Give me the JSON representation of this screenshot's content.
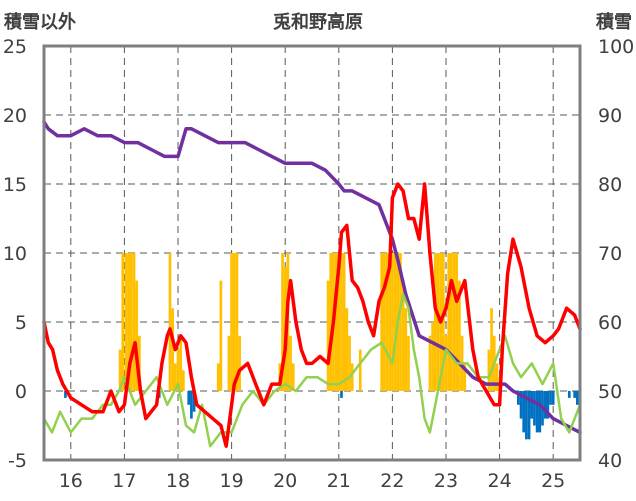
{
  "chart_data": {
    "type": "line",
    "title": "兎和野高原",
    "y_left_label": "積雪以外",
    "y_right_label": "積雪",
    "x_ticks": [
      16,
      17,
      18,
      19,
      20,
      21,
      22,
      23,
      24,
      25
    ],
    "x_range": [
      15.5,
      25.5
    ],
    "y_left_range": [
      -5,
      25
    ],
    "y_left_ticks": [
      -5,
      0,
      5,
      10,
      15,
      20,
      25
    ],
    "y_right_range": [
      40,
      100
    ],
    "y_right_ticks": [
      40,
      50,
      60,
      70,
      80,
      90,
      100
    ],
    "grid": true,
    "colors": {
      "temperature": "#ff0000",
      "humidity_like": "#92d050",
      "snow_depth": "#7030a0",
      "precip_positive": "#ffc000",
      "precip_negative": "#0070c0",
      "axis": "#7f7f7f",
      "grid": "#595959"
    },
    "series": [
      {
        "key": "snow_depth",
        "axis": "right",
        "x": [
          15.5,
          15.58,
          15.75,
          16.0,
          16.25,
          16.5,
          16.75,
          17.0,
          17.25,
          17.5,
          17.75,
          18.0,
          18.15,
          18.25,
          18.5,
          18.75,
          19.0,
          19.25,
          19.5,
          19.75,
          20.0,
          20.25,
          20.5,
          20.75,
          21.0,
          21.1,
          21.25,
          21.5,
          21.75,
          21.9,
          22.0,
          22.1,
          22.25,
          22.5,
          22.75,
          23.0,
          23.25,
          23.5,
          23.75,
          24.0,
          24.1,
          24.25,
          24.5,
          24.75,
          25.0,
          25.25,
          25.5
        ],
        "values": [
          89,
          88,
          87,
          87,
          88,
          87,
          87,
          86,
          86,
          85,
          84,
          84,
          88,
          88,
          87,
          86,
          86,
          86,
          85,
          84,
          83,
          83,
          83,
          82,
          80,
          79,
          79,
          78,
          77,
          74,
          72,
          69,
          64,
          58,
          57,
          56,
          54,
          52,
          51,
          51,
          51,
          50,
          49,
          48,
          46,
          45,
          44
        ]
      },
      {
        "key": "temperature",
        "axis": "left",
        "x": [
          15.5,
          15.58,
          15.66,
          15.75,
          15.85,
          16.0,
          16.2,
          16.4,
          16.6,
          16.75,
          16.9,
          17.0,
          17.1,
          17.2,
          17.3,
          17.4,
          17.5,
          17.6,
          17.7,
          17.8,
          17.85,
          17.95,
          18.05,
          18.15,
          18.25,
          18.35,
          18.5,
          18.65,
          18.8,
          18.9,
          19.0,
          19.05,
          19.15,
          19.3,
          19.45,
          19.6,
          19.75,
          19.9,
          20.0,
          20.05,
          20.1,
          20.2,
          20.3,
          20.4,
          20.5,
          20.65,
          20.8,
          20.9,
          21.0,
          21.05,
          21.15,
          21.25,
          21.35,
          21.45,
          21.55,
          21.65,
          21.75,
          21.85,
          21.95,
          22.0,
          22.1,
          22.2,
          22.3,
          22.4,
          22.5,
          22.6,
          22.7,
          22.8,
          22.9,
          23.0,
          23.1,
          23.2,
          23.35,
          23.5,
          23.6,
          23.75,
          23.9,
          24.0,
          24.05,
          24.15,
          24.25,
          24.4,
          24.55,
          24.7,
          24.85,
          25.0,
          25.1,
          25.25,
          25.4,
          25.5
        ],
        "values": [
          5,
          3.5,
          3,
          1.5,
          0.5,
          -0.5,
          -1,
          -1.5,
          -1.5,
          0,
          -1.5,
          -1,
          2,
          3.5,
          0,
          -2,
          -1.5,
          -1,
          2,
          4,
          4.5,
          3,
          4,
          3.5,
          1,
          -1,
          -1.5,
          -2,
          -2.5,
          -4,
          -1,
          0.5,
          1.5,
          2,
          0.5,
          -1,
          0.5,
          0.5,
          3,
          6.5,
          8,
          5,
          3,
          2,
          2,
          2.5,
          2,
          5,
          9,
          11.5,
          12,
          8,
          7.5,
          6.5,
          5,
          4,
          6.5,
          7.5,
          9,
          14,
          15,
          14.5,
          12.5,
          12.5,
          11,
          15,
          10,
          6,
          5,
          6,
          8,
          6.5,
          8,
          3,
          1,
          0,
          -1,
          -1,
          3,
          8.5,
          11,
          9,
          6,
          4,
          3.5,
          4,
          4.5,
          6,
          5.5,
          4.5
        ]
      },
      {
        "key": "humidity_like",
        "axis": "left",
        "x": [
          15.5,
          15.65,
          15.8,
          16.0,
          16.2,
          16.4,
          16.6,
          16.75,
          16.9,
          17.0,
          17.2,
          17.4,
          17.6,
          17.8,
          18.0,
          18.15,
          18.3,
          18.45,
          18.6,
          18.8,
          19.0,
          19.2,
          19.4,
          19.6,
          19.8,
          20.0,
          20.2,
          20.4,
          20.6,
          20.8,
          21.0,
          21.2,
          21.4,
          21.6,
          21.8,
          22.0,
          22.1,
          22.2,
          22.3,
          22.4,
          22.5,
          22.6,
          22.7,
          22.8,
          22.9,
          23.0,
          23.2,
          23.4,
          23.6,
          23.8,
          24.0,
          24.1,
          24.25,
          24.4,
          24.6,
          24.8,
          25.0,
          25.15,
          25.3,
          25.5
        ],
        "values": [
          -2,
          -3,
          -1.5,
          -3,
          -2,
          -2,
          -1,
          -1,
          0,
          1,
          -1,
          0,
          1,
          -1,
          0.5,
          -2.5,
          -3,
          -1,
          -4,
          -3,
          -3,
          -1,
          0,
          -1,
          0,
          0.5,
          0,
          1,
          1,
          0.5,
          0.5,
          1,
          2,
          3,
          3.5,
          2,
          5,
          7,
          6,
          3,
          1,
          -2,
          -3,
          -1,
          1,
          3,
          2,
          2,
          1,
          1,
          3,
          4,
          2,
          1,
          2,
          0.5,
          2,
          -2,
          -3,
          -1
        ]
      }
    ],
    "bars": [
      {
        "key": "precip_positive",
        "axis": "left",
        "x": [
          16.92,
          16.97,
          17.03,
          17.08,
          17.13,
          17.18,
          17.23,
          17.28,
          17.85,
          17.9,
          17.95,
          18.0,
          18.05,
          18.1,
          18.75,
          18.8,
          18.95,
          19.0,
          19.05,
          19.1,
          19.15,
          19.9,
          19.95,
          20.0,
          20.05,
          20.1,
          20.15,
          20.8,
          20.85,
          20.9,
          20.95,
          21.0,
          21.05,
          21.1,
          21.15,
          21.2,
          21.25,
          21.4,
          21.8,
          21.85,
          21.9,
          21.95,
          22.0,
          22.05,
          22.1,
          22.15,
          22.2,
          22.25,
          22.3,
          22.7,
          22.75,
          22.8,
          22.85,
          22.9,
          22.95,
          23.0,
          23.05,
          23.1,
          23.15,
          23.2,
          23.25,
          23.3,
          23.35,
          23.8,
          23.85,
          23.9,
          23.95,
          24.0
        ],
        "values": [
          3,
          10,
          10,
          10,
          10,
          10,
          8,
          4,
          10,
          6,
          2,
          3,
          4,
          1.5,
          2,
          8,
          4,
          10,
          10,
          10,
          4,
          2,
          10,
          9,
          10,
          4,
          2,
          8,
          10,
          10,
          10,
          10,
          10,
          10,
          6,
          4,
          2,
          3,
          10,
          10,
          10,
          10,
          10,
          10,
          10,
          10,
          8,
          6,
          4,
          4,
          5,
          10,
          10,
          10,
          10,
          4,
          10,
          10,
          10,
          10,
          8,
          4,
          2,
          3,
          6,
          4,
          2,
          1
        ]
      },
      {
        "key": "precip_negative",
        "axis": "left",
        "x": [
          15.9,
          17.65,
          18.2,
          18.25,
          18.3,
          21.05,
          24.35,
          24.4,
          24.45,
          24.5,
          24.55,
          24.6,
          24.65,
          24.7,
          24.75,
          24.8,
          24.85,
          24.9,
          24.95,
          25.0,
          25.3,
          25.4,
          25.45
        ],
        "values": [
          -0.5,
          -0.5,
          -1,
          -2,
          -1.5,
          -0.5,
          -1,
          -2,
          -3,
          -3.5,
          -3.5,
          -2,
          -2.5,
          -3,
          -3,
          -2.5,
          -2,
          -2,
          -1,
          -1,
          -0.5,
          -0.5,
          -1
        ]
      }
    ]
  }
}
